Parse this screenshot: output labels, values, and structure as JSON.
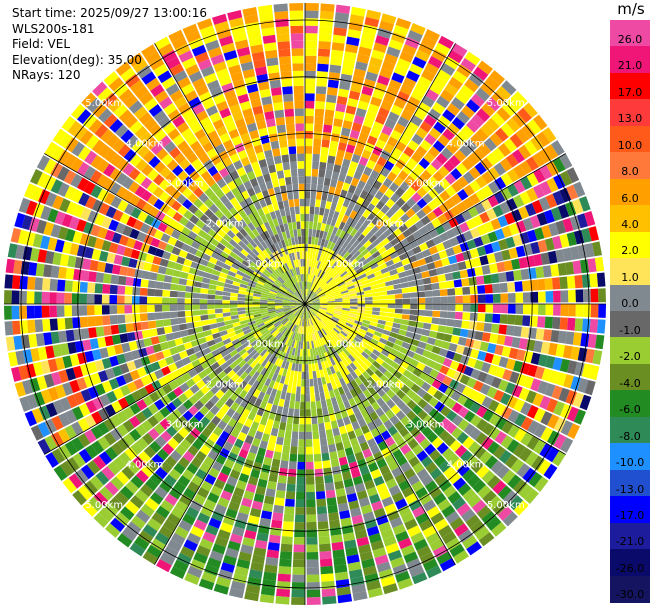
{
  "info": {
    "start_time": "Start time: 2025/09/27 13:00:16",
    "station": "WLS200s-181",
    "field": "Field: VEL",
    "elevation": "Elevation(deg): 35.00",
    "nrays": "NRays: 120"
  },
  "colorbar": {
    "unit": "m/s",
    "ticks": [
      "26.0",
      "21.0",
      "17.0",
      "13.0",
      "10.0",
      "8.0",
      "6.0",
      "4.0",
      "2.0",
      "1.0",
      "0.0",
      "-1.0",
      "-2.0",
      "-4.0",
      "-6.0",
      "-8.0",
      "-10.0",
      "-13.0",
      "-17.0",
      "-21.0",
      "-26.0",
      "-30.0"
    ],
    "colors": [
      "#ee4aa4",
      "#f01678",
      "#ff0000",
      "#ff3a3a",
      "#ff5a1a",
      "#ff7a3a",
      "#ffa000",
      "#ffc000",
      "#ffff00",
      "#ffe45a",
      "#808890",
      "#686868",
      "#9acd32",
      "#6b8e23",
      "#228b22",
      "#2e8b57",
      "#1e90ff",
      "#2050d0",
      "#0000ff",
      "#1c1c9c",
      "#0a0a6a",
      "#141460"
    ]
  },
  "chart_data": {
    "type": "heatmap",
    "projection": "polar-ppi",
    "field": "VEL",
    "unit": "m/s",
    "nrays": 120,
    "range_rings_km": [
      1.0,
      2.0,
      3.0,
      4.0,
      5.0
    ],
    "range_ring_labels": [
      "1.00km",
      "2.00km",
      "3.00km",
      "4.00km",
      "5.00km"
    ],
    "max_range_km": 5.3,
    "radials": 12,
    "regions": [
      {
        "range_km": [
          0.0,
          0.5
        ],
        "dominant": "mixed green/yellow"
      },
      {
        "range_km": [
          0.5,
          1.0
        ],
        "dominant": "yellow (0..2 m/s) south-east, yellow-green north-west"
      },
      {
        "range_km": [
          1.0,
          1.6
        ],
        "dominant": "grey (0 m/s) north, yellow east"
      },
      {
        "range_km": [
          1.6,
          5.3
        ],
        "dominant": "noisy mixed; orange/yellow north, green/olive south"
      }
    ]
  }
}
